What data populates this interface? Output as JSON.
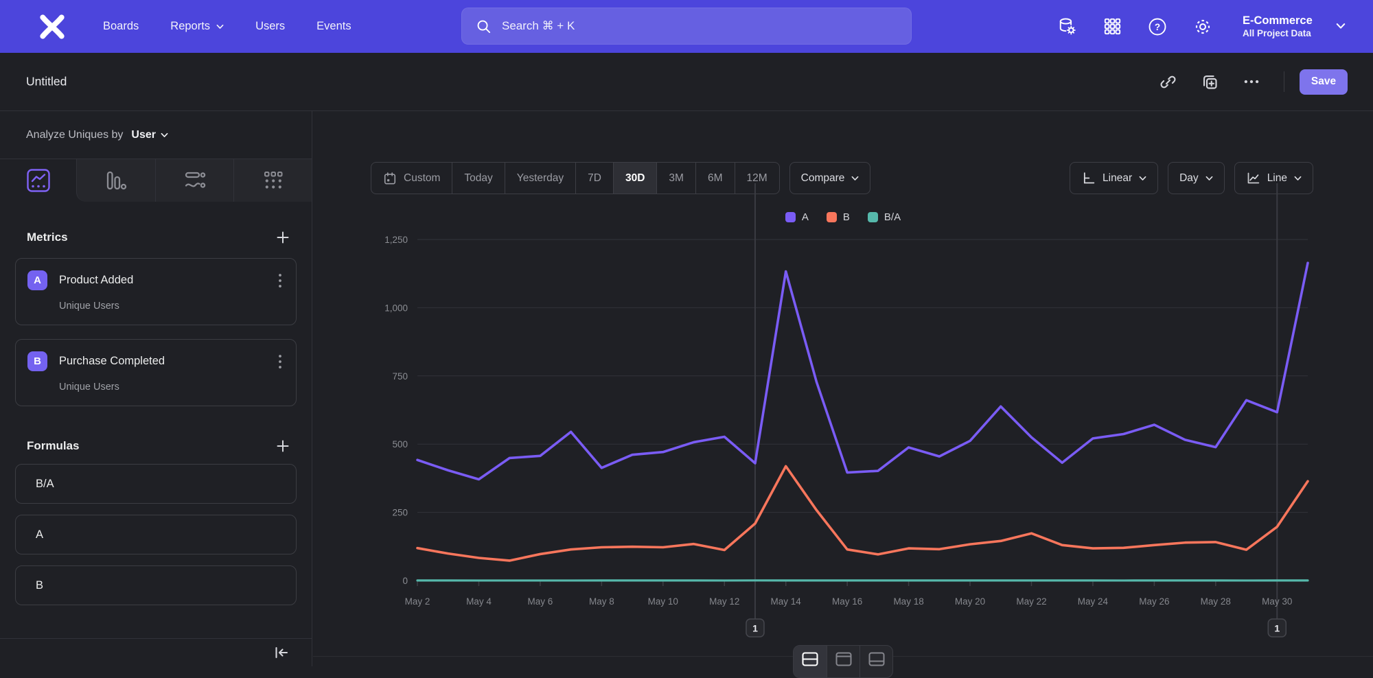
{
  "colors": {
    "brand_purple": "#4c45dc",
    "save_button": "#7e74ec",
    "series_a": "#7a5cf5",
    "series_b": "#f8765c",
    "series_ba": "#56b8ab",
    "metric_badge": "#7462f0"
  },
  "nav": {
    "links": [
      {
        "label": "Boards",
        "chevron": false
      },
      {
        "label": "Reports",
        "chevron": true
      },
      {
        "label": "Users",
        "chevron": false
      },
      {
        "label": "Events",
        "chevron": false
      }
    ],
    "search_placeholder": "Search  ⌘ + K",
    "icon_names": [
      "data-connections-icon",
      "apps-grid-icon",
      "help-icon",
      "settings-gear-icon"
    ],
    "project": {
      "name": "E-Commerce",
      "scope": "All Project Data"
    }
  },
  "header": {
    "title": "Untitled",
    "save_label": "Save"
  },
  "sidebar": {
    "analyze": {
      "prefix": "Analyze Uniques by",
      "value": "User"
    },
    "tab_icons": [
      "insights-line-tab-icon",
      "bar-chart-tab-icon",
      "flows-tab-icon",
      "retention-grid-tab-icon"
    ],
    "active_tab": 0,
    "metrics": {
      "heading": "Metrics",
      "items": [
        {
          "badge": "A",
          "title": "Product Added",
          "subtitle": "Unique Users"
        },
        {
          "badge": "B",
          "title": "Purchase Completed",
          "subtitle": "Unique Users"
        }
      ]
    },
    "formulas": {
      "heading": "Formulas",
      "items": [
        {
          "title": "B/A"
        },
        {
          "title": "A"
        },
        {
          "title": "B"
        }
      ]
    }
  },
  "controls": {
    "date_ranges": [
      "Custom",
      "Today",
      "Yesterday",
      "7D",
      "30D",
      "3M",
      "6M",
      "12M"
    ],
    "active_range": "30D",
    "compare_label": "Compare",
    "scale_label": "Linear",
    "interval_label": "Day",
    "chart_type_label": "Line"
  },
  "chart_data": {
    "type": "line",
    "x": [
      "May 2",
      "May 3",
      "May 4",
      "May 5",
      "May 6",
      "May 7",
      "May 8",
      "May 9",
      "May 10",
      "May 11",
      "May 12",
      "May 13",
      "May 14",
      "May 15",
      "May 16",
      "May 17",
      "May 18",
      "May 19",
      "May 20",
      "May 21",
      "May 22",
      "May 23",
      "May 24",
      "May 25",
      "May 26",
      "May 27",
      "May 28",
      "May 29",
      "May 30",
      "May 31"
    ],
    "x_tick_step": 2,
    "ylim": [
      0,
      1250
    ],
    "yticks": [
      0,
      250,
      500,
      750,
      1000,
      1250
    ],
    "grid": true,
    "legend_position": "top-center",
    "series": [
      {
        "name": "A",
        "color": "#7a5cf5",
        "values": [
          442,
          404,
          371,
          449,
          457,
          545,
          413,
          461,
          471,
          507,
          527,
          430,
          1133,
          728,
          396,
          402,
          488,
          455,
          512,
          638,
          525,
          432,
          521,
          537,
          571,
          516,
          489,
          661,
          617,
          1164
        ]
      },
      {
        "name": "B",
        "color": "#f8765c",
        "values": [
          119,
          99,
          83,
          73,
          97,
          114,
          122,
          124,
          122,
          134,
          112,
          209,
          419,
          258,
          114,
          96,
          118,
          115,
          133,
          145,
          173,
          130,
          118,
          120,
          130,
          139,
          141,
          113,
          197,
          364
        ]
      },
      {
        "name": "B/A",
        "color": "#56b8ab",
        "values": [
          0.27,
          0.25,
          0.22,
          0.16,
          0.21,
          0.21,
          0.3,
          0.27,
          0.26,
          0.26,
          0.21,
          0.49,
          0.37,
          0.35,
          0.29,
          0.24,
          0.24,
          0.25,
          0.26,
          0.23,
          0.33,
          0.3,
          0.23,
          0.22,
          0.23,
          0.27,
          0.29,
          0.17,
          0.32,
          0.31
        ]
      }
    ],
    "annotations": [
      {
        "label": "1",
        "x": "May 13"
      },
      {
        "label": "1",
        "x": "May 30"
      }
    ]
  },
  "footer": {
    "view_modes": [
      "split-chart-table",
      "chart-only",
      "table-only"
    ],
    "active_view": 0
  }
}
